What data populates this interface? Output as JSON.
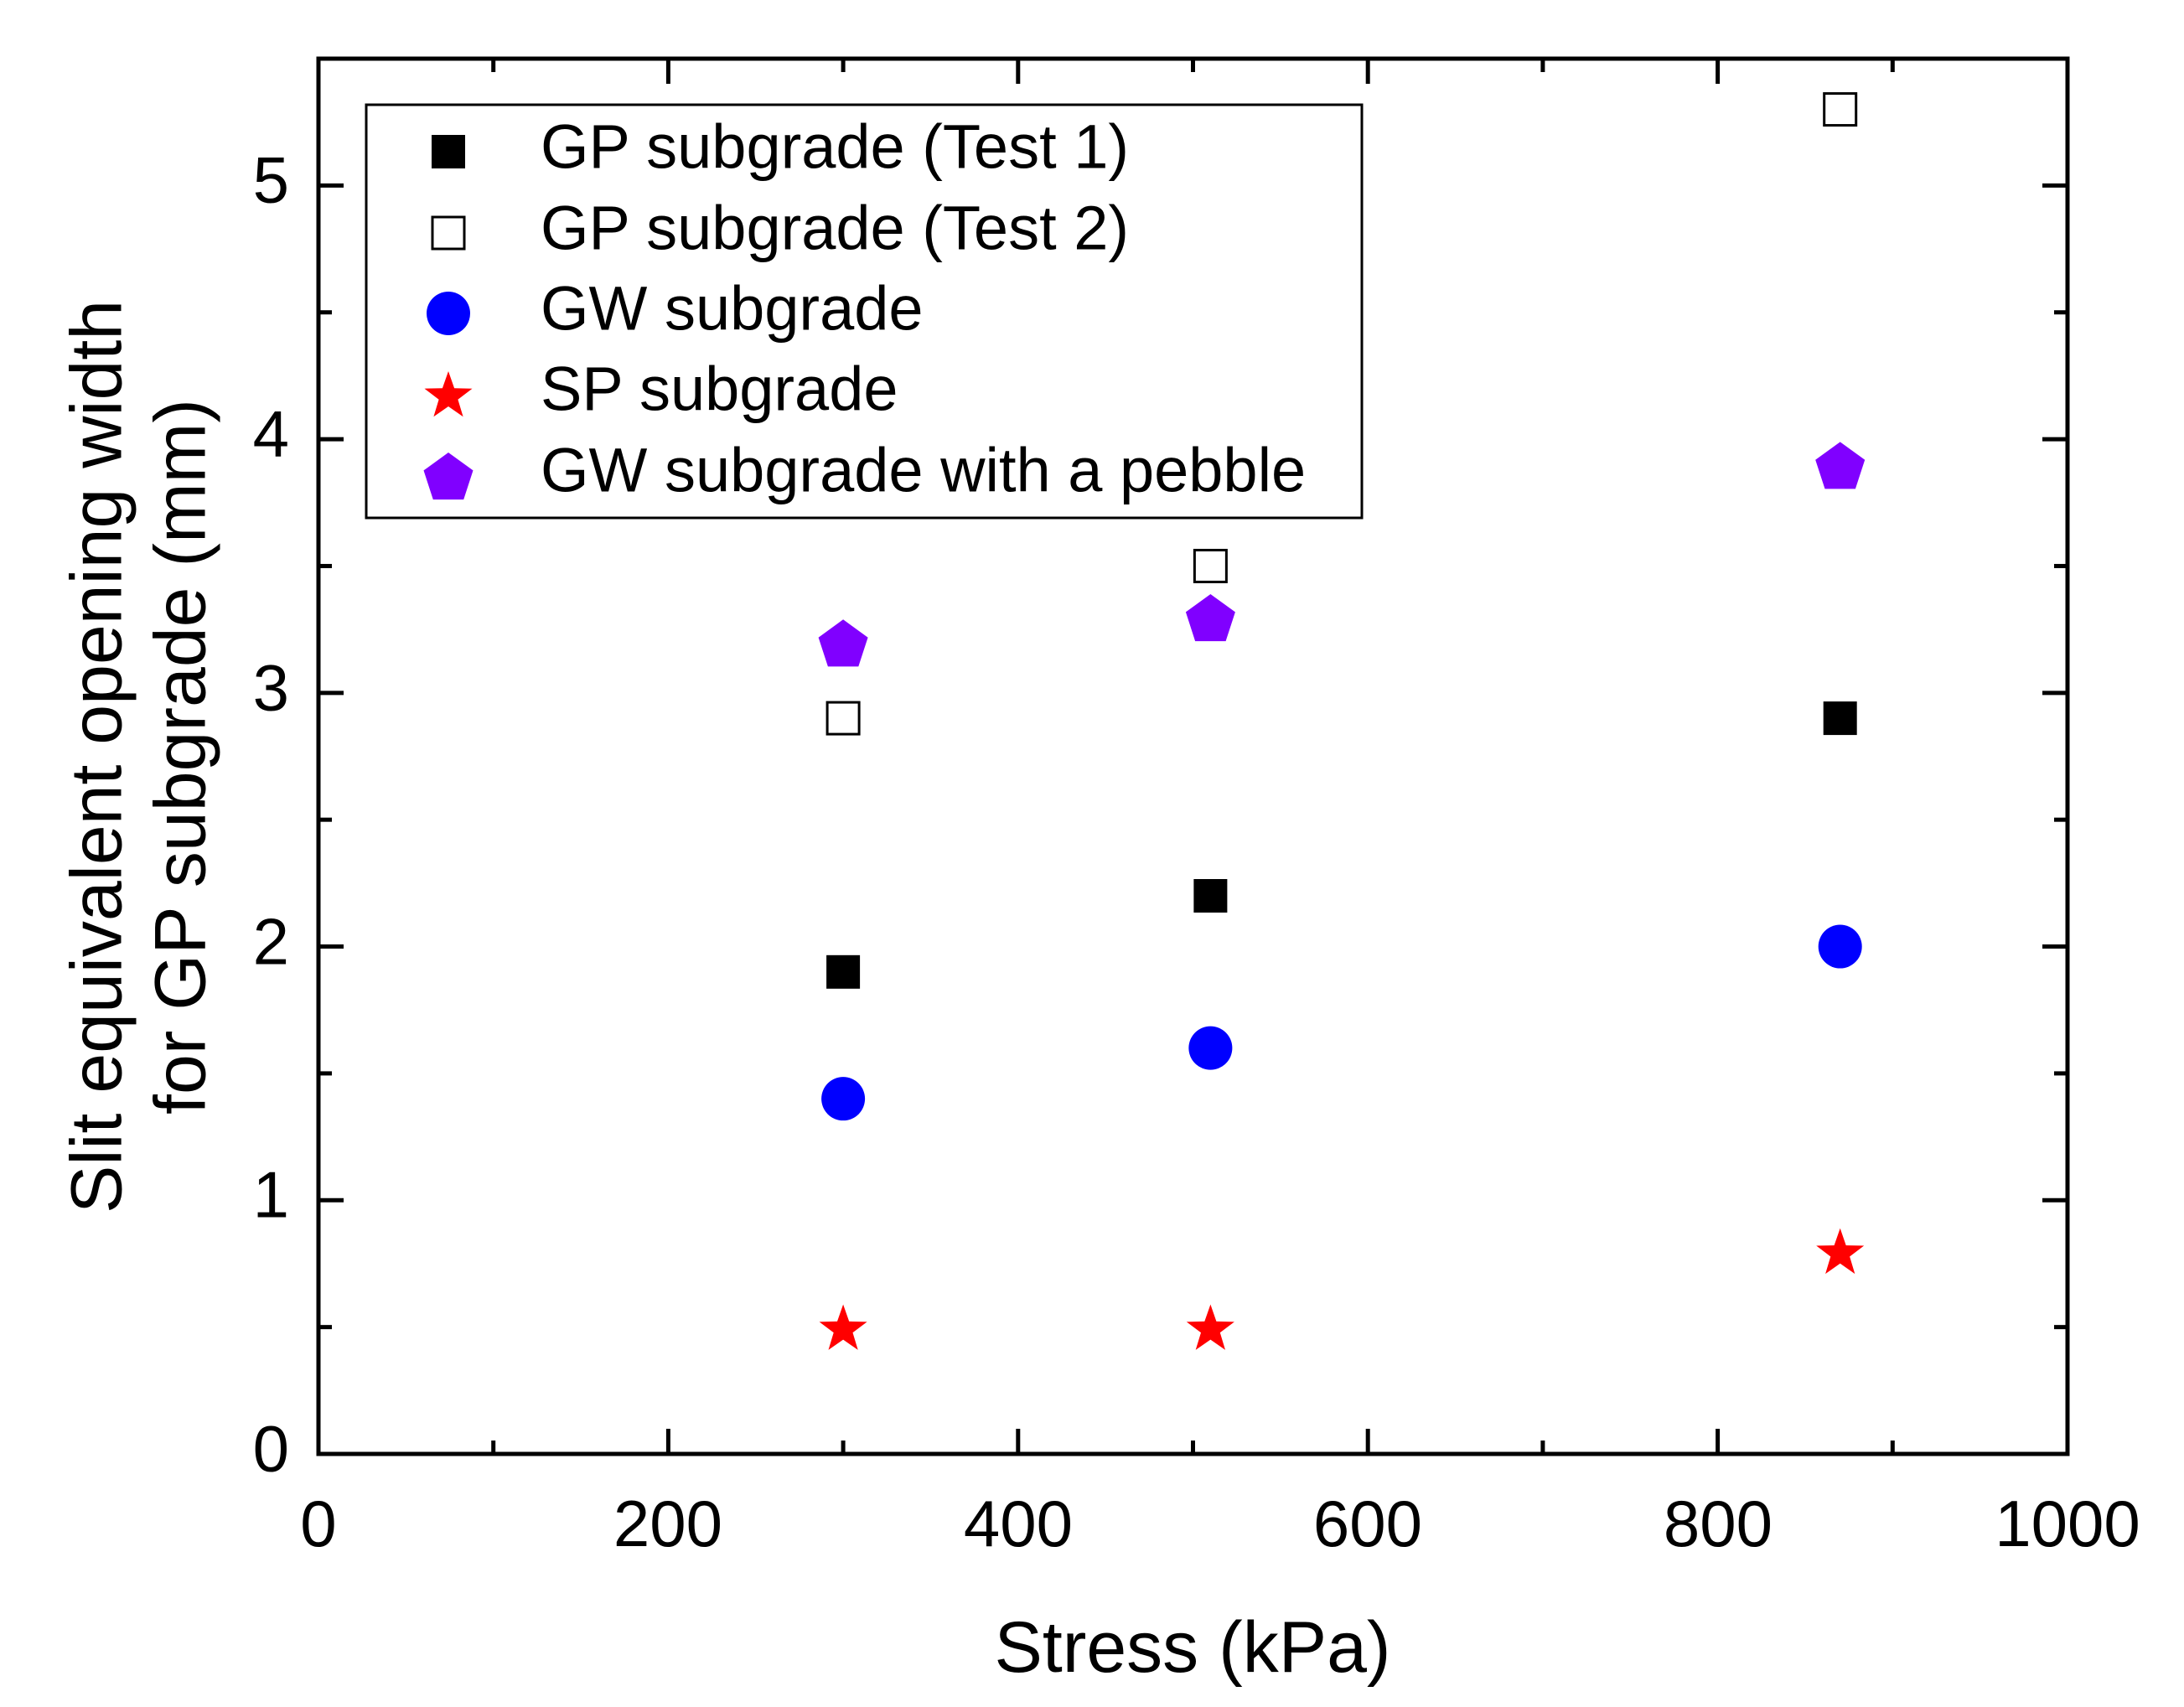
{
  "chart_data": {
    "type": "scatter",
    "title": "",
    "xlabel": "Stress (kPa)",
    "ylabel_lines": [
      "Slit equivalent opening width",
      "for GP subgrade (mm)"
    ],
    "xlim": [
      0,
      1000
    ],
    "ylim": [
      0,
      5.5
    ],
    "x_ticks": [
      0,
      200,
      400,
      600,
      800,
      1000
    ],
    "y_ticks": [
      0,
      1,
      2,
      3,
      4,
      5
    ],
    "x_tick_labels": [
      "0",
      "200",
      "400",
      "600",
      "800",
      "1000"
    ],
    "y_tick_labels": [
      "0",
      "1",
      "2",
      "3",
      "4",
      "5"
    ],
    "x_minor_ticks": [
      100,
      300,
      500,
      700,
      900
    ],
    "y_minor_ticks": [
      0.5,
      1.5,
      2.5,
      3.5,
      4.5
    ],
    "grid": false,
    "legend_position": "top-left",
    "series": [
      {
        "name": "GP subgrade (Test 1)",
        "marker": "filled-square",
        "color": "#000000",
        "x": [
          300,
          510,
          870
        ],
        "y": [
          1.9,
          2.2,
          2.9
        ]
      },
      {
        "name": "GP subgrade (Test 2)",
        "marker": "open-square",
        "color": "#000000",
        "x": [
          300,
          510,
          870
        ],
        "y": [
          2.9,
          3.5,
          5.3
        ]
      },
      {
        "name": "GW subgrade",
        "marker": "circle",
        "color": "#0000ff",
        "x": [
          300,
          510,
          870
        ],
        "y": [
          1.4,
          1.6,
          2.0
        ]
      },
      {
        "name": "SP subgrade",
        "marker": "star",
        "color": "#ff0000",
        "x": [
          300,
          510,
          870
        ],
        "y": [
          0.5,
          0.5,
          0.8
        ]
      },
      {
        "name": "GW subgrade with a pebble",
        "marker": "pentagon",
        "color": "#8000ff",
        "x": [
          300,
          510,
          870
        ],
        "y": [
          3.2,
          3.3,
          3.9
        ]
      }
    ]
  }
}
